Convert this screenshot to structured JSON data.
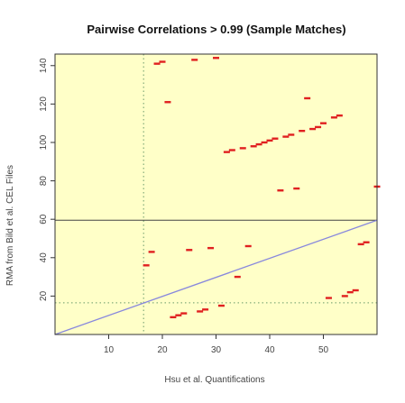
{
  "chart_data": {
    "type": "scatter",
    "title": "Pairwise Correlations > 0.99 (Sample Matches)",
    "xlabel": "Hsu et al. Quantifications",
    "ylabel": "RMA from Bild et al. CEL Files",
    "xlim": [
      0,
      60
    ],
    "ylim": [
      0,
      146
    ],
    "xticks": [
      10,
      20,
      30,
      40,
      50
    ],
    "yticks": [
      20,
      40,
      60,
      80,
      100,
      120,
      140
    ],
    "background": "#ffffc8",
    "point_color": "#e02020",
    "reference_lines": {
      "horizontal_solid_y": 59.5,
      "vertical_dotted_x": 16.5,
      "horizontal_dotted_y": 16.5,
      "diagonal": {
        "from": [
          0,
          0
        ],
        "to": [
          60,
          59.5
        ],
        "color": "#8888dd"
      }
    },
    "points": [
      {
        "x": 19,
        "y": 141
      },
      {
        "x": 20,
        "y": 142
      },
      {
        "x": 21,
        "y": 121
      },
      {
        "x": 26,
        "y": 143
      },
      {
        "x": 30,
        "y": 144
      },
      {
        "x": 32,
        "y": 95
      },
      {
        "x": 33,
        "y": 96
      },
      {
        "x": 35,
        "y": 97
      },
      {
        "x": 37,
        "y": 98
      },
      {
        "x": 38,
        "y": 99
      },
      {
        "x": 39,
        "y": 100
      },
      {
        "x": 40,
        "y": 101
      },
      {
        "x": 41,
        "y": 102
      },
      {
        "x": 43,
        "y": 103
      },
      {
        "x": 44,
        "y": 104
      },
      {
        "x": 46,
        "y": 106
      },
      {
        "x": 47,
        "y": 123
      },
      {
        "x": 48,
        "y": 107
      },
      {
        "x": 49,
        "y": 108
      },
      {
        "x": 50,
        "y": 110
      },
      {
        "x": 52,
        "y": 113
      },
      {
        "x": 53,
        "y": 114
      },
      {
        "x": 42,
        "y": 75
      },
      {
        "x": 45,
        "y": 76
      },
      {
        "x": 60,
        "y": 77
      },
      {
        "x": 17,
        "y": 36
      },
      {
        "x": 18,
        "y": 43
      },
      {
        "x": 25,
        "y": 44
      },
      {
        "x": 29,
        "y": 45
      },
      {
        "x": 36,
        "y": 46
      },
      {
        "x": 34,
        "y": 30
      },
      {
        "x": 22,
        "y": 9
      },
      {
        "x": 23,
        "y": 10
      },
      {
        "x": 24,
        "y": 11
      },
      {
        "x": 27,
        "y": 12
      },
      {
        "x": 28,
        "y": 13
      },
      {
        "x": 31,
        "y": 15
      },
      {
        "x": 51,
        "y": 19
      },
      {
        "x": 54,
        "y": 20
      },
      {
        "x": 55,
        "y": 22
      },
      {
        "x": 56,
        "y": 23
      },
      {
        "x": 57,
        "y": 47
      },
      {
        "x": 58,
        "y": 48
      }
    ]
  }
}
